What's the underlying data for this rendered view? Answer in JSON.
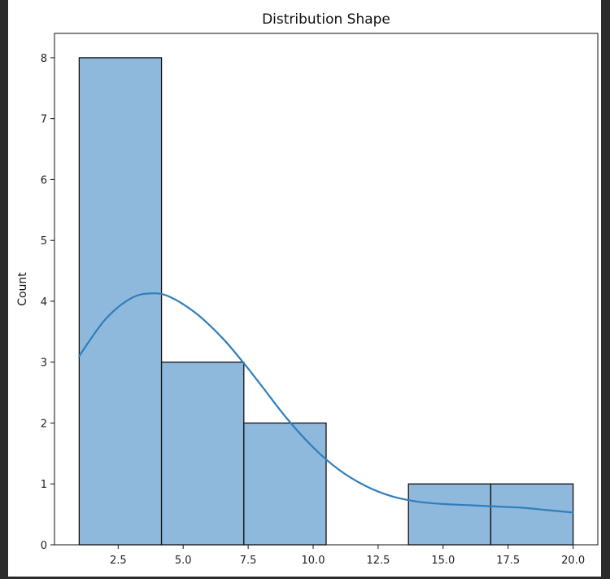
{
  "chart_data": {
    "type": "bar",
    "title": "Distribution Shape",
    "xlabel": "",
    "ylabel": "Count",
    "xlim": [
      0.05,
      20.95
    ],
    "ylim": [
      0,
      8.4
    ],
    "bins": [
      {
        "x0": 1.0,
        "x1": 4.1667,
        "count": 8
      },
      {
        "x0": 4.1667,
        "x1": 7.3333,
        "count": 3
      },
      {
        "x0": 7.3333,
        "x1": 10.5,
        "count": 2
      },
      {
        "x0": 10.5,
        "x1": 13.6667,
        "count": 0
      },
      {
        "x0": 13.6667,
        "x1": 16.8333,
        "count": 1
      },
      {
        "x0": 16.8333,
        "x1": 20.0,
        "count": 1
      }
    ],
    "x_ticks": [
      "2.5",
      "5.0",
      "7.5",
      "10.0",
      "12.5",
      "15.0",
      "17.5",
      "20.0"
    ],
    "y_ticks": [
      "0",
      "1",
      "2",
      "3",
      "4",
      "5",
      "6",
      "7",
      "8"
    ],
    "kde": {
      "x": [
        1.0,
        2.0,
        3.0,
        3.8,
        4.5,
        5.5,
        6.5,
        7.3,
        8.0,
        9.0,
        10.0,
        11.0,
        12.0,
        13.0,
        14.0,
        15.0,
        16.0,
        17.0,
        18.0,
        19.0,
        20.0
      ],
      "y": [
        3.1,
        3.7,
        4.05,
        4.13,
        4.07,
        3.8,
        3.4,
        3.0,
        2.62,
        2.07,
        1.6,
        1.23,
        0.97,
        0.8,
        0.71,
        0.67,
        0.65,
        0.63,
        0.61,
        0.57,
        0.53
      ]
    },
    "grid": false,
    "bar_color": "#8fb9dc",
    "bar_edge_color": "#111111",
    "line_color": "#2f7ebc"
  }
}
